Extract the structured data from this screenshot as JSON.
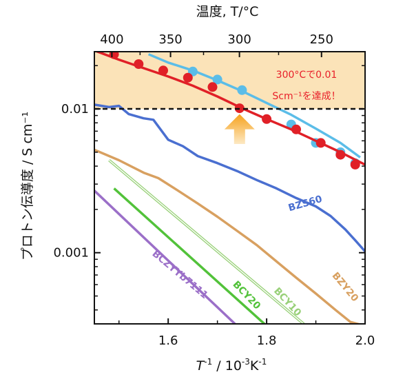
{
  "chart_data": {
    "type": "line",
    "x_axis": {
      "label_main": "T",
      "label_sup1": "-1",
      "label_rest": " / 10",
      "label_sup2": "-3",
      "label_rest2": "K",
      "label_sup3": "-1",
      "range": [
        1.45,
        2.0
      ],
      "ticks": [
        1.6,
        1.8,
        2.0
      ],
      "tick_labels": [
        "1.6",
        "1.8",
        "2.0"
      ]
    },
    "top_axis": {
      "label": "温度, T/°C",
      "ticks_celsius": [
        400,
        350,
        300,
        250
      ],
      "tick_labels": [
        "400",
        "350",
        "300",
        "250"
      ]
    },
    "y_axis": {
      "label": "プロトン伝導度 / S cm⁻¹",
      "scale": "log",
      "range": [
        0.00032,
        0.025
      ],
      "ticks": [
        0.001,
        0.01
      ],
      "tick_labels": [
        "0.001",
        "0.01"
      ]
    },
    "highlight_region": {
      "y_from": 0.01,
      "y_to": 0.025,
      "color": "#fbe3b8"
    },
    "reference_line": {
      "y": 0.01,
      "style": "dashed"
    },
    "annotation": {
      "line1": "300°Cで0.01",
      "line2": "Scm⁻¹を達成！",
      "color": "#e8202a"
    },
    "arrow": {
      "x": 1.745,
      "y_from": 0.0057,
      "y_to": 0.0092,
      "color": "#f6a21d"
    },
    "series": [
      {
        "name": "BZS60",
        "color": "#4a6fd0",
        "style": "line",
        "label_at": [
          1.88,
          0.0021
        ],
        "points": [
          [
            1.45,
            0.0107
          ],
          [
            1.48,
            0.0103
          ],
          [
            1.5,
            0.0105
          ],
          [
            1.52,
            0.0092
          ],
          [
            1.55,
            0.0086
          ],
          [
            1.57,
            0.0084
          ],
          [
            1.6,
            0.0061
          ],
          [
            1.63,
            0.0055
          ],
          [
            1.66,
            0.0047
          ],
          [
            1.7,
            0.0042
          ],
          [
            1.74,
            0.0037
          ],
          [
            1.78,
            0.0032
          ],
          [
            1.82,
            0.0028
          ],
          [
            1.86,
            0.0024
          ],
          [
            1.9,
            0.0021
          ],
          [
            1.93,
            0.0018
          ],
          [
            1.96,
            0.00145
          ],
          [
            1.98,
            0.00122
          ],
          [
            2.0,
            0.00102
          ]
        ]
      },
      {
        "name": "BZY20",
        "color": "#d8a060",
        "style": "line",
        "label_at": [
          1.955,
          0.00056
        ],
        "points": [
          [
            1.45,
            0.0052
          ],
          [
            1.5,
            0.0044
          ],
          [
            1.55,
            0.0036
          ],
          [
            1.58,
            0.0033
          ],
          [
            1.62,
            0.0027
          ],
          [
            1.66,
            0.0022
          ],
          [
            1.7,
            0.00178
          ],
          [
            1.74,
            0.00142
          ],
          [
            1.78,
            0.00113
          ],
          [
            1.82,
            0.00087
          ],
          [
            1.86,
            0.00067
          ],
          [
            1.9,
            0.00052
          ],
          [
            1.94,
            0.0004
          ],
          [
            1.97,
            0.00033
          ],
          [
            2.0,
            0.00031
          ]
        ]
      },
      {
        "name": "BCY10",
        "color": "#98d078",
        "style": "double",
        "label_at": [
          1.838,
          0.00044
        ],
        "points": [
          [
            1.48,
            0.0044
          ],
          [
            1.88,
            0.00031
          ]
        ]
      },
      {
        "name": "BCY20",
        "color": "#52c23a",
        "style": "line",
        "label_at": [
          1.755,
          0.00049
        ],
        "points": [
          [
            1.49,
            0.0028
          ],
          [
            1.8,
            0.00031
          ]
        ]
      },
      {
        "name": "BCZYYb7111",
        "color": "#9b6fc8",
        "style": "line",
        "label_at": [
          1.62,
          0.00068
        ],
        "points": [
          [
            1.45,
            0.0027
          ],
          [
            1.74,
            0.00031
          ]
        ]
      },
      {
        "name": "",
        "color": "#5bbde8",
        "style": "fit+markers",
        "fit_points": [
          [
            1.56,
            0.024
          ],
          [
            1.6,
            0.021
          ],
          [
            1.65,
            0.0185
          ],
          [
            1.7,
            0.0158
          ],
          [
            1.75,
            0.0133
          ],
          [
            1.8,
            0.011
          ],
          [
            1.85,
            0.0091
          ],
          [
            1.9,
            0.0073
          ],
          [
            1.95,
            0.0058
          ],
          [
            1.99,
            0.0046
          ]
        ],
        "markers": [
          [
            1.65,
            0.0182
          ],
          [
            1.7,
            0.016
          ],
          [
            1.75,
            0.0135
          ],
          [
            1.85,
            0.0078
          ],
          [
            1.9,
            0.0058
          ],
          [
            1.95,
            0.005
          ],
          [
            1.98,
            0.0042
          ]
        ]
      },
      {
        "name": "",
        "color": "#e02027",
        "style": "fit+markers",
        "fit_points": [
          [
            1.45,
            0.0255
          ],
          [
            1.5,
            0.022
          ],
          [
            1.55,
            0.0192
          ],
          [
            1.6,
            0.0168
          ],
          [
            1.65,
            0.0145
          ],
          [
            1.7,
            0.0122
          ],
          [
            1.75,
            0.0101
          ],
          [
            1.8,
            0.0085
          ],
          [
            1.85,
            0.0072
          ],
          [
            1.9,
            0.006
          ],
          [
            1.95,
            0.005
          ],
          [
            2.0,
            0.0041
          ]
        ],
        "markers": [
          [
            1.49,
            0.024
          ],
          [
            1.54,
            0.0205
          ],
          [
            1.59,
            0.0185
          ],
          [
            1.64,
            0.0165
          ],
          [
            1.69,
            0.0142
          ],
          [
            1.745,
            0.0101
          ],
          [
            1.8,
            0.0085
          ],
          [
            1.86,
            0.0072
          ],
          [
            1.91,
            0.0058
          ],
          [
            1.95,
            0.0048
          ],
          [
            1.98,
            0.0041
          ]
        ]
      }
    ]
  }
}
